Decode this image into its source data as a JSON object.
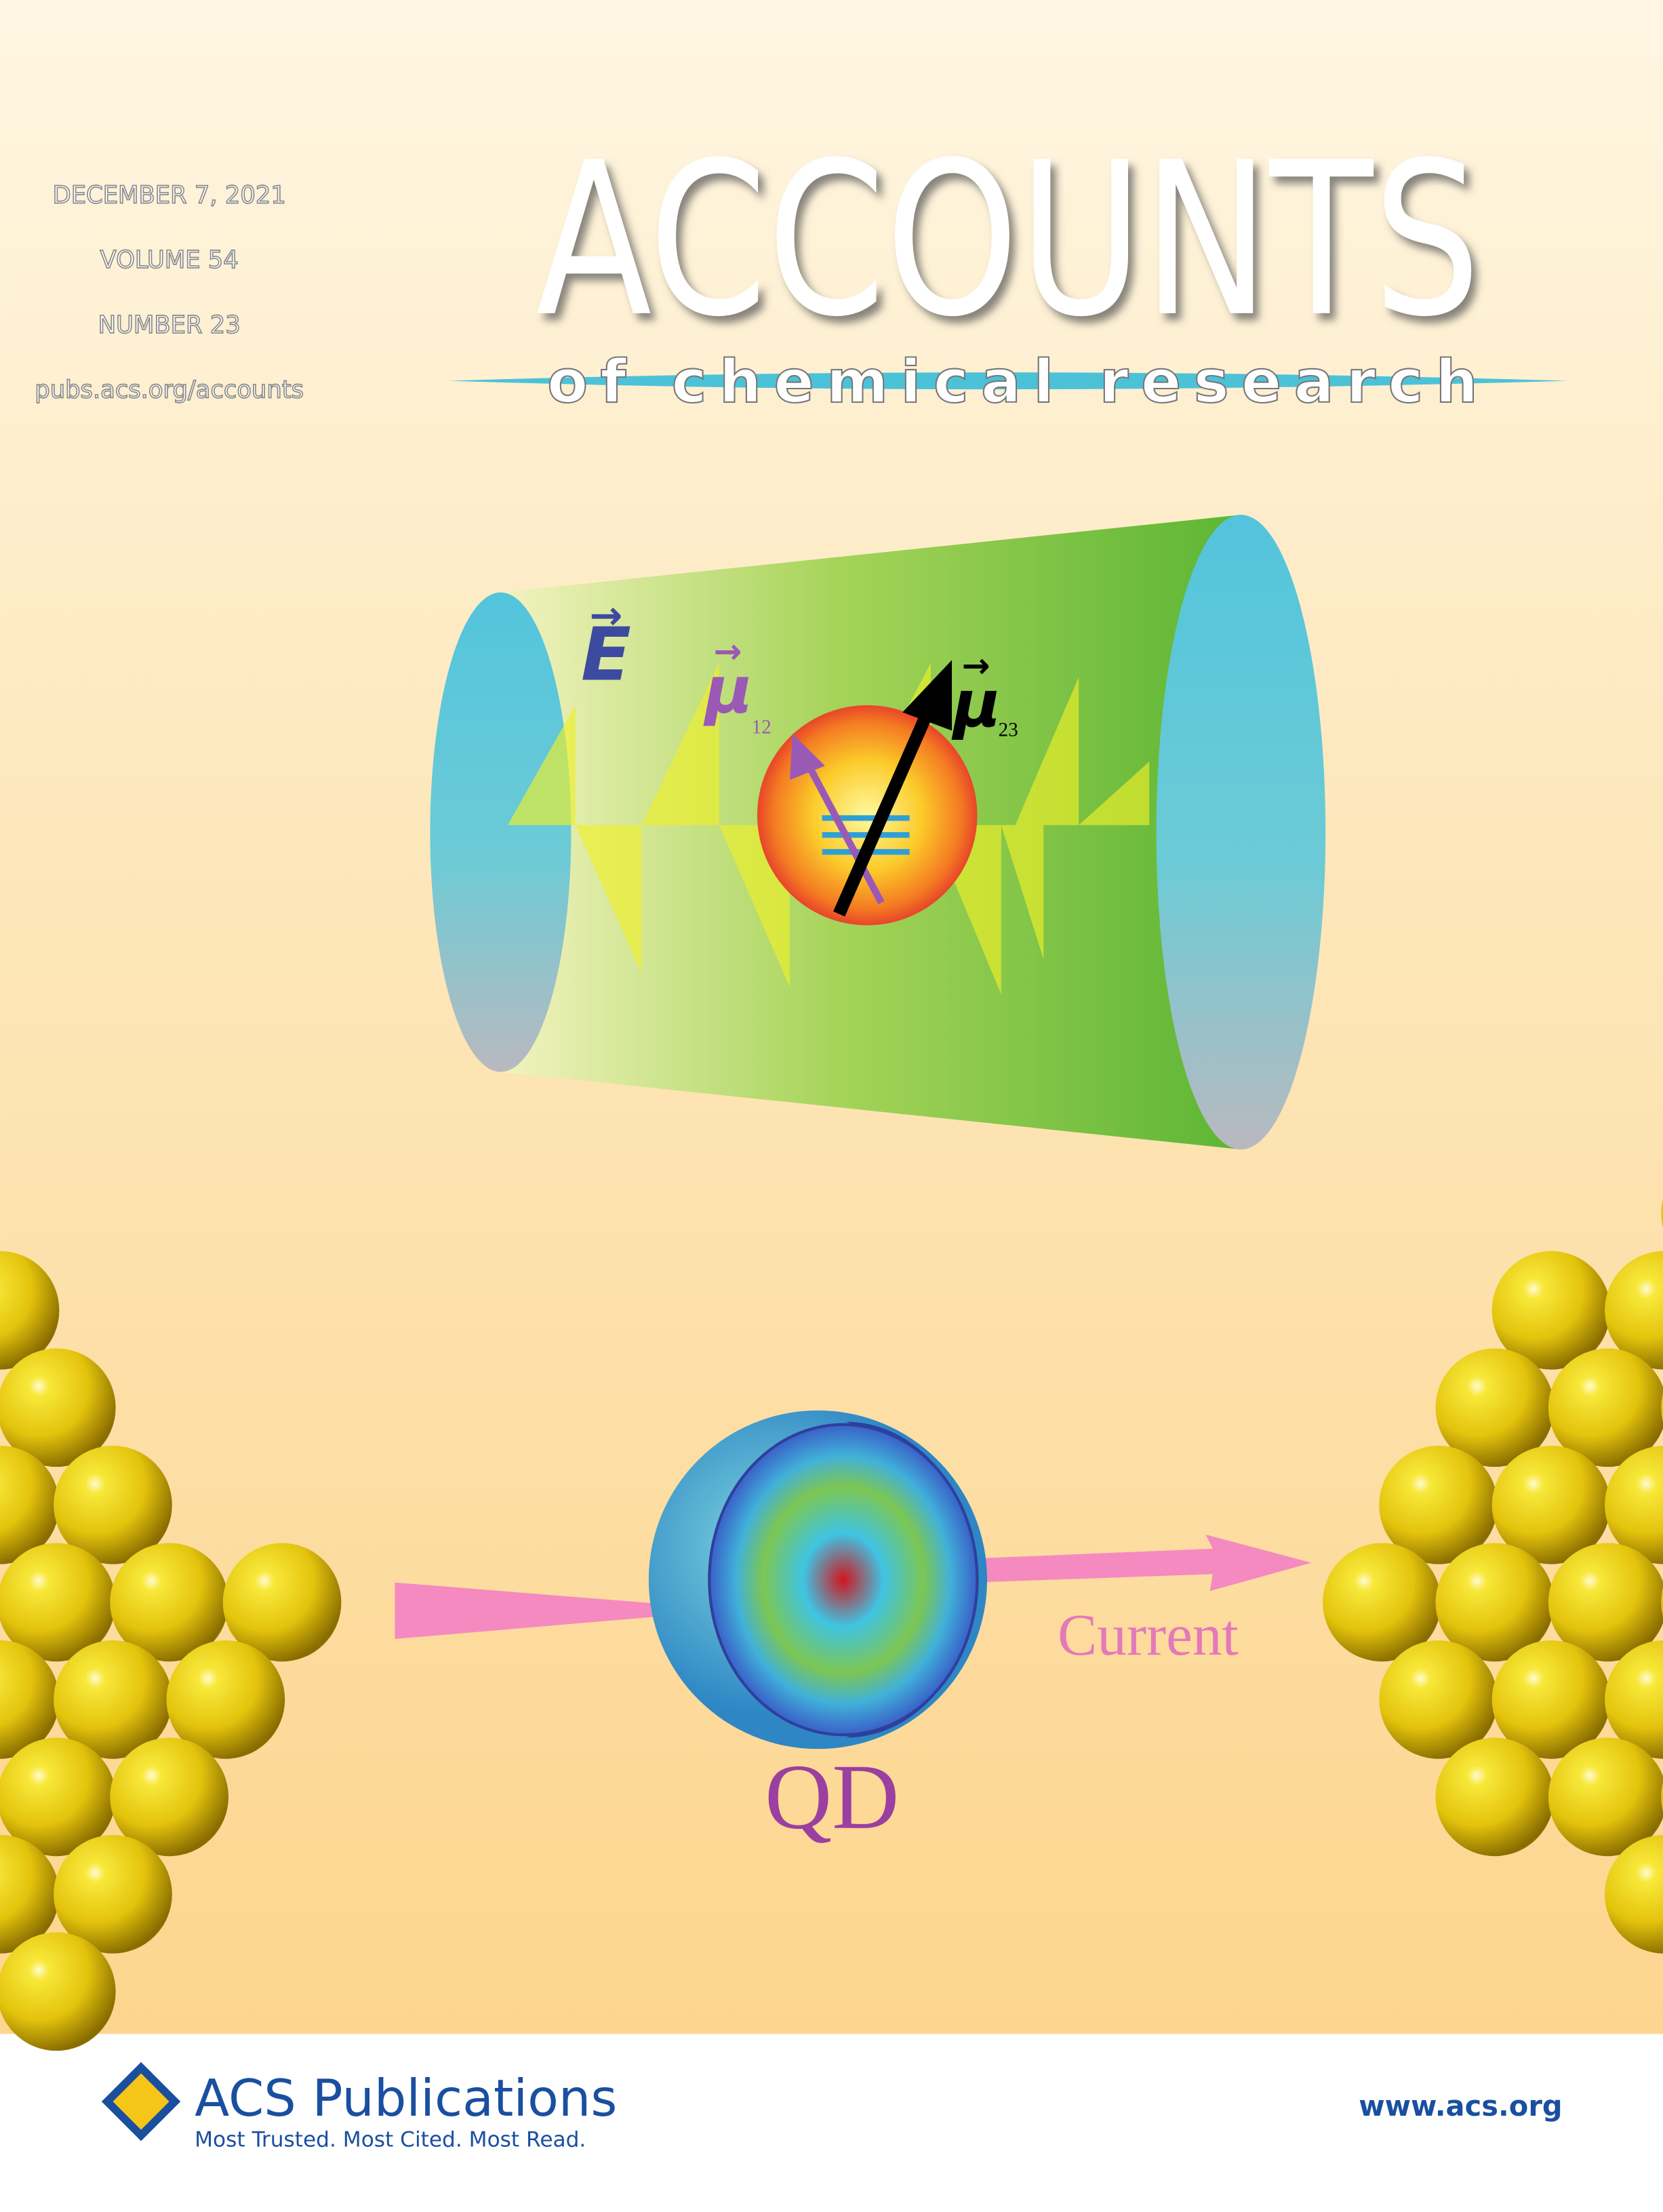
{
  "header": {
    "date": "DECEMBER 7, 2021",
    "volume": "VOLUME 54",
    "number": "NUMBER 23",
    "url": "pubs.acs.org/accounts"
  },
  "masthead": {
    "title": "ACCOUNTS",
    "subtitle": "of chemical research"
  },
  "illustration": {
    "field_label": "E",
    "dipole_symbol": "μ",
    "dipole_12_index": "12",
    "dipole_23_index": "23",
    "current_label": "Current",
    "qd_label": "QD"
  },
  "footer": {
    "publisher": "ACS Publications",
    "tagline": "Most Trusted. Most Cited. Most Read.",
    "website": "www.acs.org"
  }
}
